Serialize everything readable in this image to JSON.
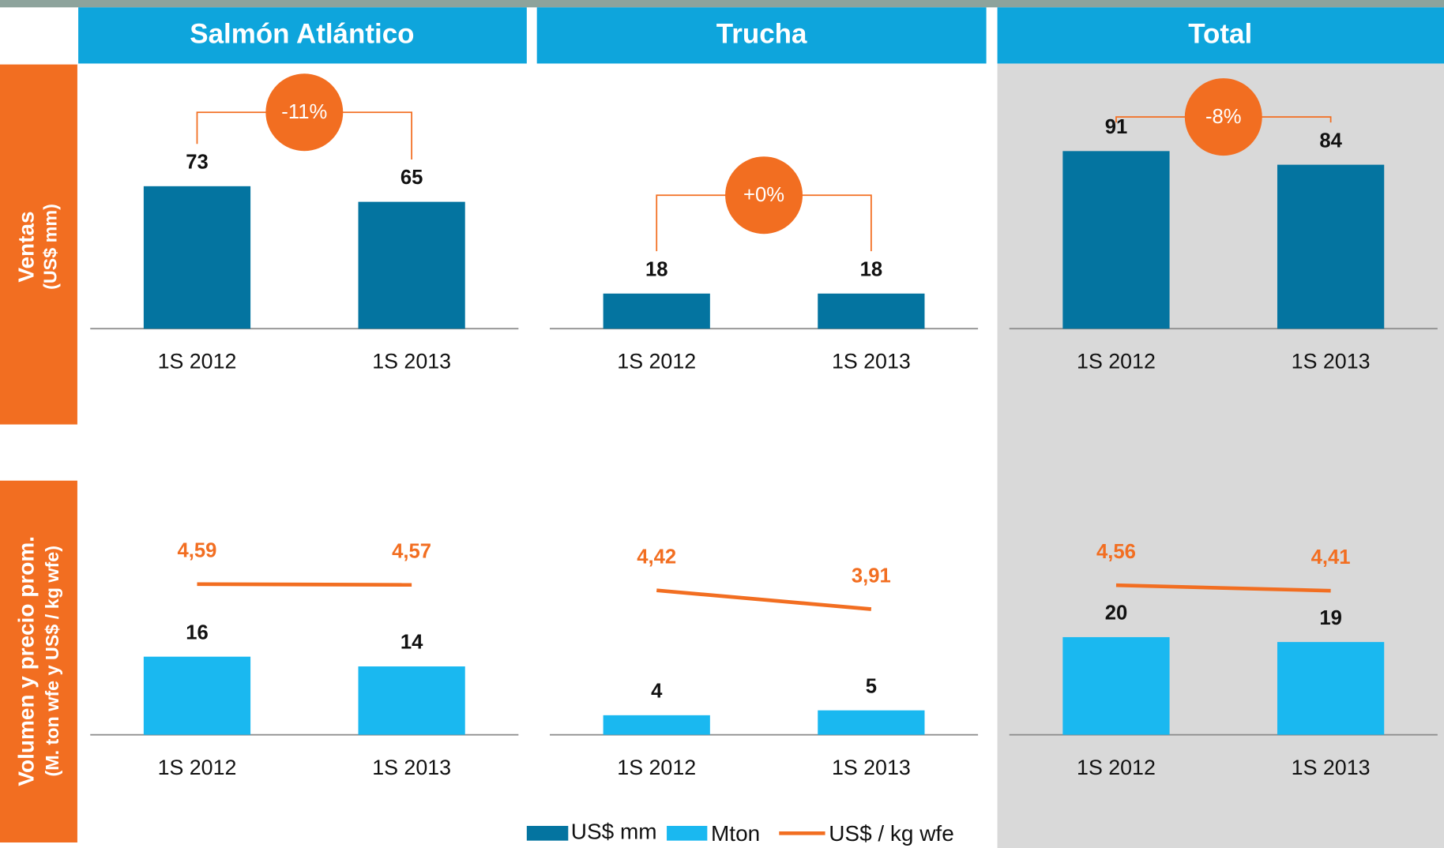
{
  "column_headers": [
    "Salmón Atlántico",
    "Trucha",
    "Total"
  ],
  "row_labels": [
    {
      "title": "Ventas",
      "subtitle": "(US$ mm)"
    },
    {
      "title": "Volumen y precio prom.",
      "subtitle": "(M. ton wfe  y US$ / kg wfe)"
    }
  ],
  "chart_data": [
    {
      "type": "bar",
      "categories": [
        "1S 2012",
        "1S 2013"
      ],
      "ylim": [
        0,
        100
      ],
      "annotation": "-11%",
      "series": [
        {
          "name": "US$ mm",
          "color": "#0474a0",
          "values": [
            73,
            65
          ]
        }
      ]
    },
    {
      "type": "bar",
      "categories": [
        "1S 2012",
        "1S 2013"
      ],
      "ylim": [
        0,
        100
      ],
      "annotation": "+0%",
      "series": [
        {
          "color": "#0474a0",
          "values": [
            18,
            18
          ]
        }
      ]
    },
    {
      "type": "bar",
      "categories": [
        "1S 2012",
        "1S 2013"
      ],
      "ylim": [
        0,
        100
      ],
      "annotation": "-8%",
      "series": [
        {
          "color": "#0474a0",
          "values": [
            91,
            84
          ]
        }
      ]
    },
    {
      "type": "combo",
      "categories": [
        "1S 2012",
        "1S 2013"
      ],
      "ylim": [
        0,
        40
      ],
      "y2lim": [
        0.5,
        5.8
      ],
      "series": [
        {
          "name": "Mton",
          "color": "#1ab8f0",
          "values": [
            16,
            14
          ]
        },
        {
          "name": "US$ / kg wfe",
          "color": "#f26e21",
          "axis": "y2",
          "values": [
            4.59,
            4.57
          ],
          "value_labels": [
            "4,59",
            "4,57"
          ]
        }
      ]
    },
    {
      "type": "combo",
      "categories": [
        "1S 2012",
        "1S 2013"
      ],
      "ylim": [
        0,
        40
      ],
      "y2lim": [
        0.5,
        5.8
      ],
      "series": [
        {
          "color": "#1ab8f0",
          "values": [
            4,
            5
          ]
        },
        {
          "color": "#f26e21",
          "axis": "y2",
          "values": [
            4.42,
            3.91
          ],
          "value_labels": [
            "4,42",
            "3,91"
          ]
        }
      ]
    },
    {
      "type": "combo",
      "categories": [
        "1S 2012",
        "1S 2013"
      ],
      "ylim": [
        0,
        40
      ],
      "y2lim": [
        0.5,
        5.8
      ],
      "series": [
        {
          "color": "#1ab8f0",
          "values": [
            20,
            19
          ]
        },
        {
          "color": "#f26e21",
          "axis": "y2",
          "values": [
            4.56,
            4.41
          ],
          "value_labels": [
            "4,56",
            "4,41"
          ]
        }
      ]
    }
  ]
}
